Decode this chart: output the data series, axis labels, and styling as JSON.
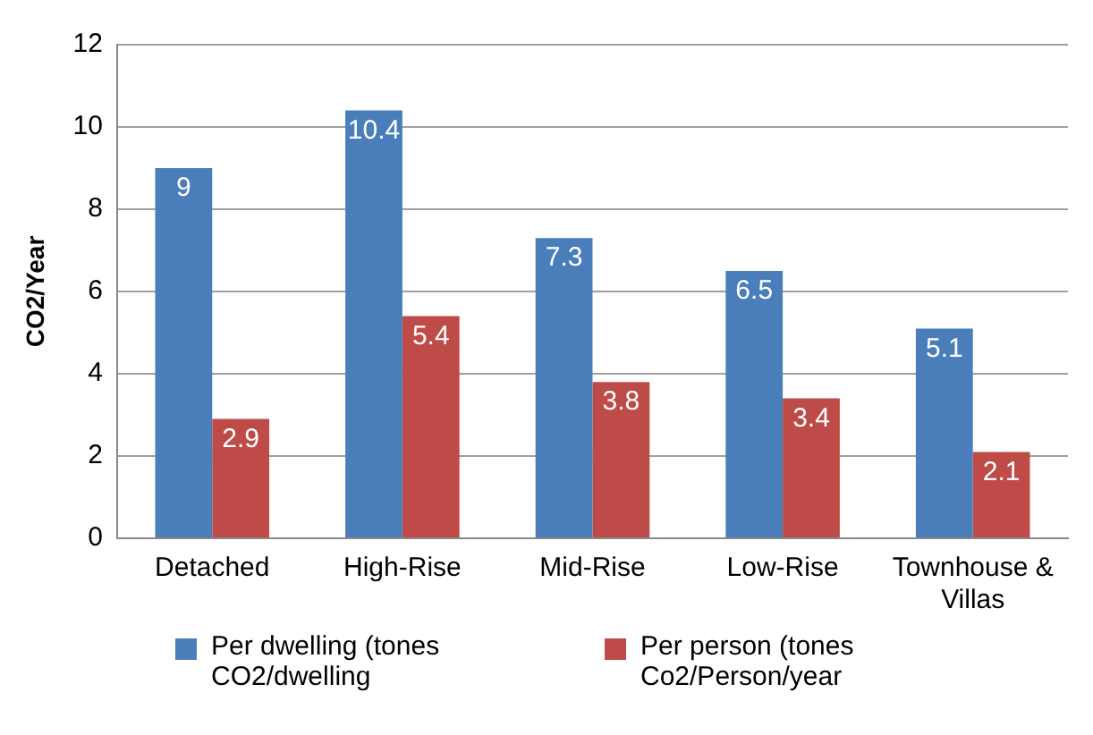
{
  "chart_data": {
    "type": "bar",
    "ylabel": "CO2/Year",
    "categories": [
      "Detached",
      "High-Rise",
      "Mid-Rise",
      "Low-Rise",
      "Townhouse & Villas"
    ],
    "series": [
      {
        "name": "Per dwelling (tones CO2/dwelling",
        "color": "#4a7ebb",
        "values": [
          9,
          10.4,
          7.3,
          6.5,
          5.1
        ]
      },
      {
        "name": "Per person (tones Co2/Person/year",
        "color": "#be4b48",
        "values": [
          2.9,
          5.4,
          3.8,
          3.4,
          2.1
        ]
      }
    ],
    "ylim": [
      0,
      12
    ],
    "yticks": [
      0,
      2,
      4,
      6,
      8,
      10,
      12
    ],
    "grid": "y",
    "legend": "bottom",
    "data_labels": true
  }
}
